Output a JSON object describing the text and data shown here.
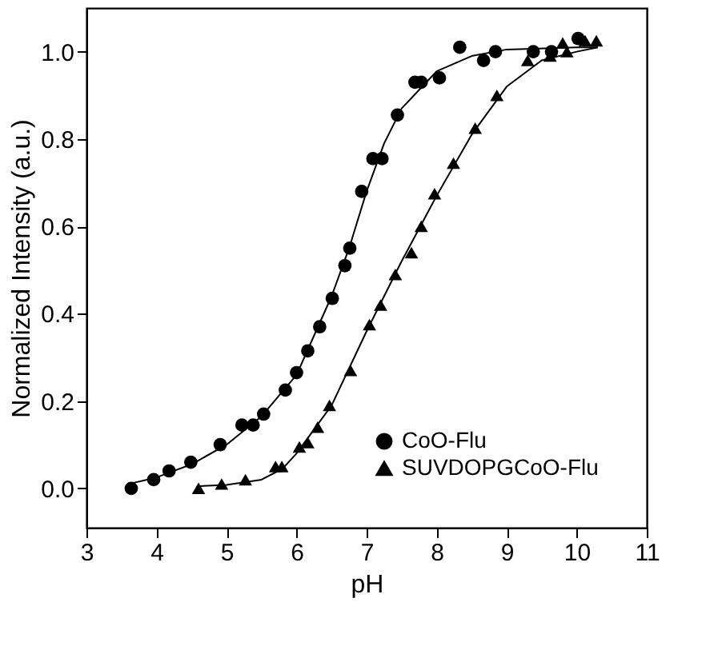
{
  "chart_data": {
    "type": "scatter",
    "xlabel": "pH",
    "ylabel": "Normalized Intensity (a.u.)",
    "xlim": [
      3,
      11
    ],
    "xticks": [
      3,
      4,
      5,
      6,
      7,
      8,
      9,
      10,
      11
    ],
    "ylim": [
      -0.09,
      1.1
    ],
    "yticks": [
      {
        "value": 0,
        "label": "0.0"
      },
      {
        "value": 0.2,
        "label": "0.2"
      },
      {
        "value": 0.4,
        "label": "0.4"
      },
      {
        "value": 0.6,
        "label": "0.6"
      },
      {
        "value": 0.8,
        "label": "0.8"
      },
      {
        "value": 1,
        "label": "1.0"
      }
    ],
    "grid": false,
    "legend": "bottom right",
    "series": [
      {
        "name": "CoO-Flu",
        "marker": "circle",
        "color": "#000000",
        "x": [
          3.64,
          3.96,
          4.18,
          4.49,
          4.91,
          5.22,
          5.38,
          5.53,
          5.84,
          6.0,
          6.16,
          6.33,
          6.51,
          6.69,
          6.76,
          6.93,
          7.09,
          7.22,
          7.44,
          7.69,
          7.78,
          8.04,
          8.33,
          8.67,
          8.84,
          9.38,
          9.64,
          10.02
        ],
        "values": [
          0.0,
          0.02,
          0.04,
          0.06,
          0.1,
          0.145,
          0.145,
          0.17,
          0.225,
          0.265,
          0.315,
          0.37,
          0.435,
          0.51,
          0.55,
          0.68,
          0.755,
          0.755,
          0.855,
          0.93,
          0.93,
          0.94,
          1.01,
          0.98,
          1.0,
          1.0,
          1.0,
          1.03
        ]
      },
      {
        "name": "SUVDOPGCoO-Flu",
        "marker": "triangle",
        "color": "#000000",
        "x": [
          4.6,
          4.93,
          5.27,
          5.7,
          5.79,
          6.04,
          6.16,
          6.3,
          6.47,
          6.77,
          7.04,
          7.2,
          7.41,
          7.64,
          7.78,
          7.97,
          8.24,
          8.55,
          8.86,
          9.3,
          9.62,
          9.8,
          9.86,
          10.12,
          10.28
        ],
        "values": [
          0.0,
          0.01,
          0.02,
          0.05,
          0.05,
          0.095,
          0.105,
          0.14,
          0.19,
          0.27,
          0.375,
          0.42,
          0.49,
          0.54,
          0.6,
          0.675,
          0.745,
          0.825,
          0.9,
          0.98,
          0.99,
          1.02,
          1.0,
          1.025,
          1.025
        ]
      },
      {
        "type": "line",
        "line_style": "solid",
        "color": "#000000",
        "x": [
          3.6,
          4.0,
          4.5,
          5.0,
          5.5,
          6.0,
          6.5,
          6.75,
          7.0,
          7.25,
          7.5,
          8.0,
          8.5,
          9.0,
          10.0,
          10.3
        ],
        "values": [
          0.01,
          0.025,
          0.055,
          0.1,
          0.165,
          0.26,
          0.44,
          0.55,
          0.68,
          0.79,
          0.87,
          0.955,
          0.99,
          1.005,
          1.01,
          1.01
        ]
      },
      {
        "type": "line",
        "line_style": "solid",
        "color": "#000000",
        "x": [
          4.6,
          5.0,
          5.5,
          5.8,
          6.0,
          6.5,
          7.0,
          7.5,
          8.0,
          8.5,
          9.0,
          9.5,
          10.0,
          10.3
        ],
        "values": [
          0.005,
          0.008,
          0.02,
          0.045,
          0.08,
          0.19,
          0.36,
          0.52,
          0.67,
          0.81,
          0.92,
          0.98,
          1.0,
          1.01
        ]
      }
    ]
  }
}
